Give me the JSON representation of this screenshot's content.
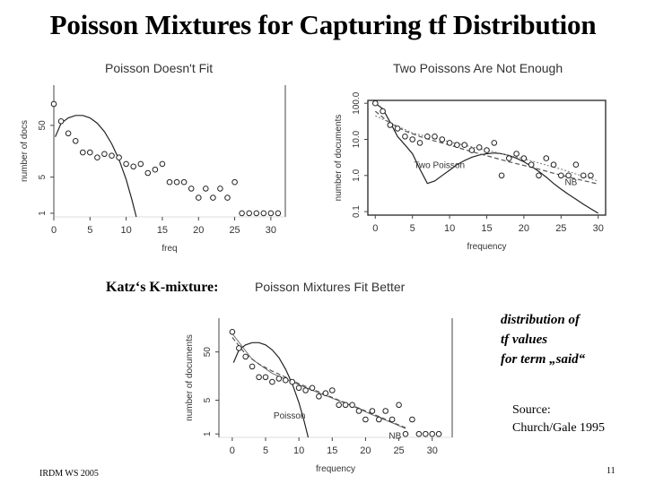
{
  "slide": {
    "title": "Poisson Mixtures for Capturing tf Distribution",
    "katz_label": "Katz‘s K-mixture:",
    "note_lines": [
      "distribution of",
      "tf values",
      "for term „said“"
    ],
    "source_lines": [
      "Source:",
      "Church/Gale 1995"
    ],
    "footer_left": "IRDM WS 2005",
    "page_number": "11"
  },
  "chart_data": [
    {
      "type": "scatter",
      "title": "Poisson Doesn't Fit",
      "xlabel": "freq",
      "ylabel": "number of docs",
      "x_ticks": [
        "0",
        "5",
        "10",
        "15",
        "20",
        "25",
        "30"
      ],
      "y_ticks": [
        "1",
        "5",
        "50"
      ],
      "xlim": [
        0,
        32
      ],
      "log_y": true,
      "ylim": [
        0.85,
        300
      ],
      "points": [
        [
          0,
          130
        ],
        [
          1,
          60
        ],
        [
          2,
          35
        ],
        [
          3,
          25
        ],
        [
          4,
          15
        ],
        [
          5,
          15
        ],
        [
          6,
          12
        ],
        [
          7,
          14
        ],
        [
          8,
          13
        ],
        [
          9,
          12
        ],
        [
          10,
          9
        ],
        [
          11,
          8
        ],
        [
          12,
          9
        ],
        [
          13,
          6
        ],
        [
          14,
          7
        ],
        [
          15,
          9
        ],
        [
          16,
          4
        ],
        [
          17,
          4
        ],
        [
          18,
          4
        ],
        [
          19,
          3
        ],
        [
          20,
          2
        ],
        [
          21,
          3
        ],
        [
          22,
          2
        ],
        [
          23,
          3
        ],
        [
          24,
          2
        ],
        [
          25,
          4
        ],
        [
          26,
          1
        ],
        [
          27,
          1
        ],
        [
          28,
          1
        ],
        [
          29,
          1
        ],
        [
          30,
          1
        ],
        [
          31,
          1
        ]
      ],
      "curves": [
        {
          "name": "",
          "style": "solid",
          "points": [
            [
              0.2,
              30
            ],
            [
              1,
              55
            ],
            [
              2,
              70
            ],
            [
              3,
              78
            ],
            [
              4,
              78
            ],
            [
              5,
              70
            ],
            [
              6,
              55
            ],
            [
              7,
              38
            ],
            [
              8,
              22
            ],
            [
              9,
              11
            ],
            [
              10,
              4.5
            ],
            [
              10.8,
              1.8
            ],
            [
              11.4,
              0.85
            ]
          ]
        }
      ]
    },
    {
      "type": "scatter",
      "title": "Two Poissons Are Not Enough",
      "xlabel": "frequency",
      "ylabel": "number of documents",
      "x_ticks": [
        "0",
        "5",
        "10",
        "15",
        "20",
        "25",
        "30"
      ],
      "y_ticks": [
        "0.1",
        "1.0",
        "10.0",
        "100.0"
      ],
      "xlim": [
        -1,
        31
      ],
      "log_y": true,
      "ylim": [
        0.08,
        120
      ],
      "points": [
        [
          0,
          100
        ],
        [
          1,
          60
        ],
        [
          2,
          25
        ],
        [
          3,
          20
        ],
        [
          4,
          12
        ],
        [
          5,
          10
        ],
        [
          6,
          8
        ],
        [
          7,
          12
        ],
        [
          8,
          12
        ],
        [
          9,
          10
        ],
        [
          10,
          8
        ],
        [
          11,
          7
        ],
        [
          12,
          7
        ],
        [
          13,
          5
        ],
        [
          14,
          6
        ],
        [
          15,
          5
        ],
        [
          16,
          8
        ],
        [
          17,
          1
        ],
        [
          18,
          3
        ],
        [
          19,
          4
        ],
        [
          20,
          3
        ],
        [
          21,
          2
        ],
        [
          22,
          1
        ],
        [
          23,
          3
        ],
        [
          24,
          2
        ],
        [
          25,
          1
        ],
        [
          26,
          1
        ],
        [
          27,
          2
        ],
        [
          28,
          1
        ],
        [
          29,
          1
        ]
      ],
      "curves": [
        {
          "name": "Two Poisson",
          "style": "solid",
          "points": [
            [
              0,
              100
            ],
            [
              1,
              70
            ],
            [
              2,
              30
            ],
            [
              3,
              12
            ],
            [
              4,
              7
            ],
            [
              5,
              4
            ],
            [
              6,
              1.5
            ],
            [
              7,
              0.6
            ],
            [
              8,
              0.7
            ],
            [
              9,
              1.0
            ],
            [
              10,
              1.4
            ],
            [
              11,
              2
            ],
            [
              12,
              2.6
            ],
            [
              13,
              3.2
            ],
            [
              14,
              3.7
            ],
            [
              15,
              4.0
            ],
            [
              16,
              4.2
            ],
            [
              17,
              4.0
            ],
            [
              18,
              3.6
            ],
            [
              19,
              3.0
            ],
            [
              20,
              2.4
            ],
            [
              21,
              1.8
            ],
            [
              22,
              1.3
            ],
            [
              23,
              0.9
            ],
            [
              24,
              0.6
            ],
            [
              25,
              0.42
            ],
            [
              26,
              0.3
            ],
            [
              27,
              0.22
            ],
            [
              28,
              0.16
            ],
            [
              29,
              0.12
            ],
            [
              30,
              0.09
            ]
          ]
        },
        {
          "name": "NB",
          "style": "dashed",
          "points": [
            [
              0,
              60
            ],
            [
              2,
              28
            ],
            [
              4,
              17
            ],
            [
              6,
              12
            ],
            [
              8,
              9
            ],
            [
              10,
              7
            ],
            [
              12,
              5.2
            ],
            [
              14,
              4
            ],
            [
              16,
              3.1
            ],
            [
              18,
              2.4
            ],
            [
              20,
              1.9
            ],
            [
              22,
              1.5
            ],
            [
              24,
              1.15
            ],
            [
              26,
              0.9
            ],
            [
              28,
              0.72
            ],
            [
              30,
              0.58
            ]
          ]
        },
        {
          "name": "",
          "style": "dotted",
          "points": [
            [
              0,
              45
            ],
            [
              5,
              15
            ],
            [
              10,
              8.5
            ],
            [
              15,
              5
            ],
            [
              20,
              2.9
            ],
            [
              25,
              1.5
            ],
            [
              30,
              0.7
            ]
          ]
        }
      ]
    },
    {
      "type": "scatter",
      "title": "Poisson Mixtures Fit Better",
      "xlabel": "frequency",
      "ylabel": "number of documents",
      "x_ticks": [
        "0",
        "5",
        "10",
        "15",
        "20",
        "25",
        "30"
      ],
      "y_ticks": [
        "1",
        "5",
        "50"
      ],
      "xlim": [
        -2,
        33
      ],
      "log_y": true,
      "ylim": [
        0.85,
        250
      ],
      "points": [
        [
          0,
          130
        ],
        [
          1,
          60
        ],
        [
          2,
          40
        ],
        [
          3,
          25
        ],
        [
          4,
          15
        ],
        [
          5,
          15
        ],
        [
          6,
          12
        ],
        [
          7,
          14
        ],
        [
          8,
          13
        ],
        [
          9,
          12
        ],
        [
          10,
          9
        ],
        [
          11,
          8
        ],
        [
          12,
          9
        ],
        [
          13,
          6
        ],
        [
          14,
          7
        ],
        [
          15,
          8
        ],
        [
          16,
          4
        ],
        [
          17,
          4
        ],
        [
          18,
          4
        ],
        [
          19,
          3
        ],
        [
          20,
          2
        ],
        [
          21,
          3
        ],
        [
          22,
          2
        ],
        [
          23,
          3
        ],
        [
          24,
          2
        ],
        [
          25,
          4
        ],
        [
          26,
          1
        ],
        [
          27,
          2
        ],
        [
          28,
          1
        ],
        [
          29,
          1
        ],
        [
          30,
          1
        ],
        [
          31,
          1
        ]
      ],
      "curves": [
        {
          "name": "Poisson",
          "style": "solid",
          "points": [
            [
              0.2,
              30
            ],
            [
              1,
              55
            ],
            [
              2,
              70
            ],
            [
              3,
              78
            ],
            [
              4,
              78
            ],
            [
              5,
              70
            ],
            [
              6,
              55
            ],
            [
              7,
              38
            ],
            [
              8,
              22
            ],
            [
              9,
              11
            ],
            [
              10,
              4.5
            ],
            [
              10.8,
              1.8
            ],
            [
              11.4,
              0.85
            ]
          ]
        },
        {
          "name": "NB",
          "style": "dashed",
          "points": [
            [
              0,
              100
            ],
            [
              2,
              45
            ],
            [
              4,
              28
            ],
            [
              6,
              20
            ],
            [
              8,
              15
            ],
            [
              10,
              11
            ],
            [
              12,
              8.5
            ],
            [
              14,
              6.5
            ],
            [
              16,
              5
            ],
            [
              18,
              3.9
            ],
            [
              20,
              3
            ],
            [
              22,
              2.3
            ],
            [
              24,
              1.75
            ],
            [
              26,
              1.35
            ]
          ]
        },
        {
          "name": "",
          "style": "solid-thin",
          "points": [
            [
              0,
              120
            ],
            [
              3,
              35
            ],
            [
              6,
              18
            ],
            [
              9,
              12
            ],
            [
              12,
              8
            ],
            [
              15,
              5.5
            ],
            [
              18,
              3.8
            ],
            [
              21,
              2.5
            ],
            [
              24,
              1.7
            ],
            [
              26,
              1.3
            ]
          ]
        }
      ]
    }
  ]
}
